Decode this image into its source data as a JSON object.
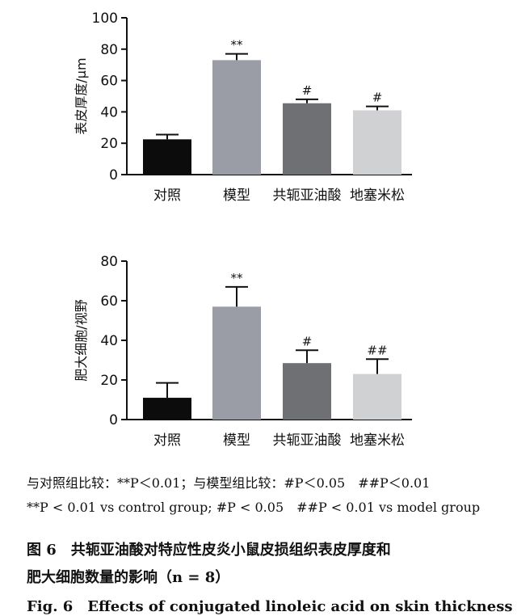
{
  "chart_data": [
    {
      "type": "bar",
      "categories": [
        "对照",
        "模型",
        "共轭亚油酸",
        "地塞米松"
      ],
      "values": [
        22.5,
        73,
        45.5,
        41
      ],
      "errors": [
        3,
        4,
        2.5,
        2.5
      ],
      "significance": [
        "",
        "**",
        "#",
        "#"
      ],
      "ylabel": "表皮厚度/μm",
      "ylim": [
        0,
        100
      ],
      "yticks": [
        0,
        20,
        40,
        60,
        80,
        100
      ],
      "grid": false,
      "bar_colors": [
        "#0c0c0c",
        "#9a9ca6",
        "#6f7074",
        "#d0d1d3"
      ]
    },
    {
      "type": "bar",
      "categories": [
        "对照",
        "模型",
        "共轭亚油酸",
        "地塞米松"
      ],
      "values": [
        11,
        57,
        28.5,
        23
      ],
      "errors": [
        7.5,
        10,
        6.5,
        7.5
      ],
      "significance": [
        "",
        "**",
        "#",
        "##"
      ],
      "ylabel": "肥大细胞/视野",
      "ylim": [
        0,
        80
      ],
      "yticks": [
        0,
        20,
        40,
        60,
        80
      ],
      "grid": false,
      "bar_colors": [
        "#0c0c0c",
        "#9a9ca6",
        "#6f7074",
        "#d0d1d3"
      ]
    }
  ],
  "notes": {
    "cn": "与对照组比较：**P＜0.01；与模型组比较：#P＜0.05　##P＜0.01",
    "en": "**P < 0.01 vs control group; #P < 0.05　##P < 0.01 vs model group"
  },
  "caption": {
    "cn_line1": "图 6　共轭亚油酸对特应性皮炎小鼠皮损组织表皮厚度和",
    "cn_line2": "肥大细胞数量的影响（n = 8）",
    "en_line1": "Fig. 6　Effects of conjugated linoleic acid on skin thickness"
  }
}
